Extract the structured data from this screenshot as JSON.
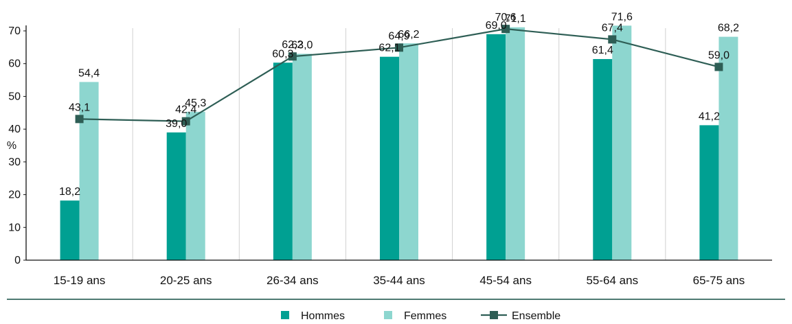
{
  "chart_data": {
    "type": "bar",
    "ylabel": "%",
    "ylim": [
      0,
      70
    ],
    "yticks": [
      0,
      10,
      20,
      30,
      40,
      50,
      60,
      70
    ],
    "grid": "vertical separators between categories",
    "legend_position": "bottom-center",
    "categories": [
      "15-19 ans",
      "20-25 ans",
      "26-34 ans",
      "35-44 ans",
      "45-54 ans",
      "55-64 ans",
      "65-75 ans"
    ],
    "series": [
      {
        "name": "Hommes",
        "kind": "bar",
        "color": "#00A092",
        "values": [
          18.2,
          39.0,
          60.3,
          62.1,
          69.0,
          61.4,
          41.2
        ],
        "labels": [
          "18,2",
          "39,0",
          "60,3",
          "62,1",
          "69,0",
          "61,4",
          "41,2"
        ]
      },
      {
        "name": "Femmes",
        "kind": "bar",
        "color": "#8DD6CF",
        "values": [
          54.4,
          45.3,
          63.0,
          66.2,
          71.1,
          71.6,
          68.2
        ],
        "labels": [
          "54,4",
          "45,3",
          "63,0",
          "66,2",
          "71,1",
          "71,6",
          "68,2"
        ]
      },
      {
        "name": "Ensemble",
        "kind": "line",
        "color": "#2E5E55",
        "marker": "square",
        "values": [
          43.1,
          42.4,
          62.2,
          64.9,
          70.6,
          67.4,
          59.0
        ],
        "labels": [
          "43,1",
          "42,4",
          "62,2",
          "64,9",
          "70,6",
          "67,4",
          "59,0"
        ]
      }
    ],
    "axis_color": "#111111",
    "separator_color": "#D0D0D0",
    "rule_color": "#4E7A72"
  }
}
